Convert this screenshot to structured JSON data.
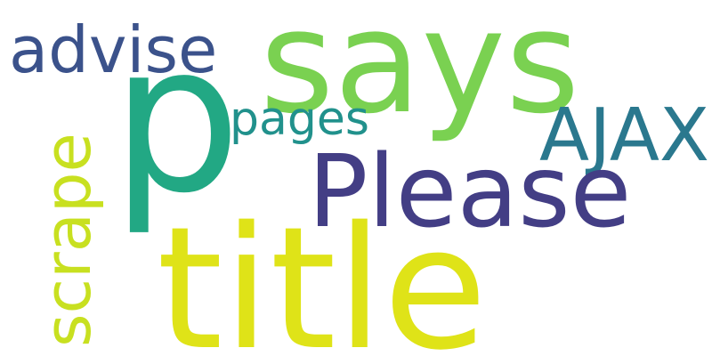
{
  "words": {
    "says": {
      "text": "says",
      "color": "#7AD151"
    },
    "p": {
      "text": "p",
      "color": "#22A884"
    },
    "title": {
      "text": "title",
      "color": "#DFE318"
    },
    "please": {
      "text": "Please",
      "color": "#433E85"
    },
    "advise": {
      "text": "advise",
      "color": "#3B528B"
    },
    "ajax": {
      "text": "AJAX",
      "color": "#2A788E"
    },
    "pages": {
      "text": "pages",
      "color": "#21918C"
    },
    "scrape": {
      "text": "scrape",
      "color": "#C8E020"
    }
  }
}
